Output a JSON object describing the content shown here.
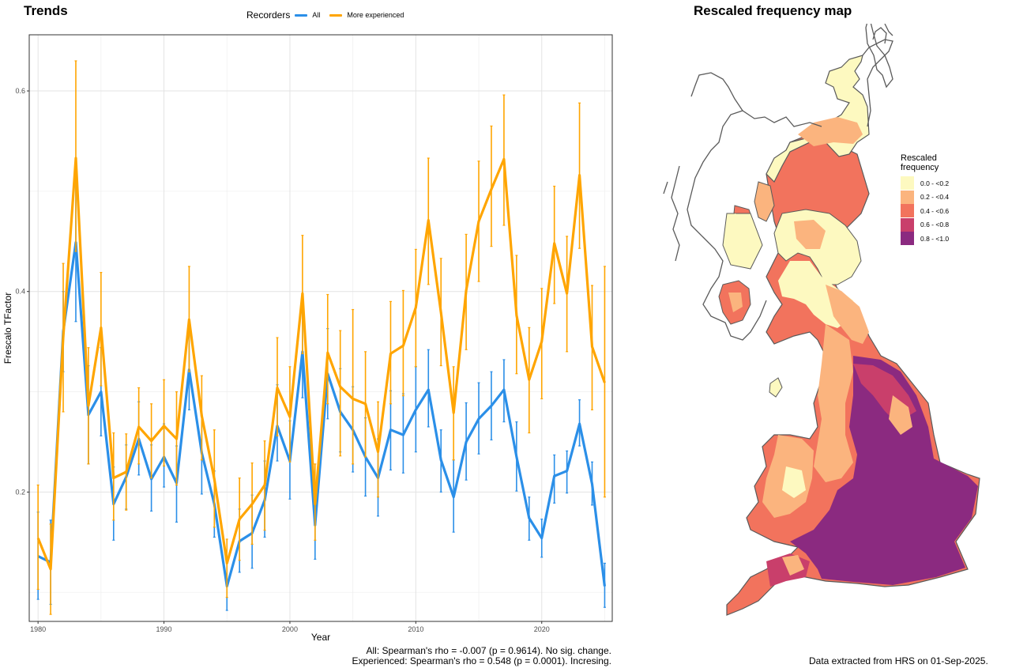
{
  "left_title": "Trends",
  "right_title": "Rescaled frequency map",
  "legend": {
    "title": "Recorders",
    "items": [
      {
        "label": "All",
        "color": "#2B8FE8"
      },
      {
        "label": "More experienced",
        "color": "#FFA500"
      }
    ]
  },
  "stats": {
    "line1": "All: Spearman's rho = -0.007 (p = 0.9614). No sig. change.",
    "line2": "Experienced: Spearman's rho = 0.548 (p = 0.0001). Incresing."
  },
  "credit": "Data extracted from HRS on 01-Sep-2025.",
  "chart_data": {
    "type": "line",
    "xlabel": "Year",
    "ylabel": "Frescalo TFactor",
    "xlim": [
      1979.3,
      2025.6
    ],
    "ylim": [
      0.071,
      0.656
    ],
    "x_ticks": [
      1980,
      1990,
      2000,
      2010,
      2020
    ],
    "y_ticks": [
      0.2,
      0.4,
      0.6
    ],
    "grid": true,
    "legend_position": "top",
    "x": [
      1980,
      1981,
      1982,
      1983,
      1984,
      1985,
      1986,
      1987,
      1988,
      1989,
      1990,
      1991,
      1992,
      1993,
      1994,
      1995,
      1996,
      1997,
      1998,
      1999,
      2000,
      2001,
      2002,
      2003,
      2004,
      2005,
      2006,
      2007,
      2008,
      2009,
      2010,
      2011,
      2012,
      2013,
      2014,
      2015,
      2016,
      2017,
      2018,
      2019,
      2020,
      2021,
      2022,
      2023,
      2024,
      2025
    ],
    "series": [
      {
        "name": "All",
        "color": "#2B8FE8",
        "values": [
          0.136,
          0.13,
          0.36,
          0.449,
          0.277,
          0.3,
          0.188,
          0.215,
          0.253,
          0.213,
          0.235,
          0.209,
          0.322,
          0.239,
          0.188,
          0.106,
          0.151,
          0.159,
          0.192,
          0.266,
          0.231,
          0.34,
          0.167,
          0.318,
          0.28,
          0.262,
          0.235,
          0.214,
          0.262,
          0.257,
          0.282,
          0.302,
          0.232,
          0.195,
          0.25,
          0.273,
          0.286,
          0.302,
          0.235,
          0.174,
          0.154,
          0.216,
          0.221,
          0.268,
          0.208,
          0.106
        ],
        "err_low": [
          0.093,
          0.088,
          0.32,
          0.37,
          0.228,
          0.256,
          0.152,
          0.183,
          0.217,
          0.181,
          0.205,
          0.17,
          0.282,
          0.198,
          0.155,
          0.082,
          0.12,
          0.124,
          0.155,
          0.231,
          0.193,
          0.294,
          0.133,
          0.273,
          0.24,
          0.22,
          0.196,
          0.176,
          0.222,
          0.219,
          0.24,
          0.265,
          0.2,
          0.16,
          0.212,
          0.238,
          0.252,
          0.27,
          0.201,
          0.152,
          0.135,
          0.189,
          0.199,
          0.246,
          0.187,
          0.085
        ],
        "err_high": [
          0.18,
          0.172,
          0.4,
          0.529,
          0.326,
          0.344,
          0.225,
          0.247,
          0.29,
          0.247,
          0.268,
          0.246,
          0.364,
          0.276,
          0.221,
          0.132,
          0.183,
          0.197,
          0.231,
          0.307,
          0.271,
          0.392,
          0.202,
          0.363,
          0.323,
          0.305,
          0.274,
          0.253,
          0.301,
          0.298,
          0.325,
          0.342,
          0.262,
          0.232,
          0.289,
          0.309,
          0.32,
          0.332,
          0.27,
          0.195,
          0.173,
          0.237,
          0.241,
          0.292,
          0.23,
          0.129
        ]
      },
      {
        "name": "More experienced",
        "color": "#FFA500",
        "values": [
          0.154,
          0.123,
          0.354,
          0.533,
          0.286,
          0.364,
          0.214,
          0.22,
          0.265,
          0.251,
          0.266,
          0.253,
          0.372,
          0.276,
          0.213,
          0.129,
          0.173,
          0.188,
          0.207,
          0.304,
          0.275,
          0.398,
          0.188,
          0.339,
          0.305,
          0.293,
          0.288,
          0.24,
          0.338,
          0.346,
          0.384,
          0.471,
          0.379,
          0.279,
          0.401,
          0.47,
          0.502,
          0.532,
          0.376,
          0.312,
          0.35,
          0.448,
          0.398,
          0.516,
          0.345,
          0.309
        ],
        "err_low": [
          0.103,
          0.078,
          0.28,
          0.44,
          0.228,
          0.306,
          0.172,
          0.182,
          0.228,
          0.214,
          0.226,
          0.207,
          0.32,
          0.232,
          0.165,
          0.095,
          0.132,
          0.148,
          0.162,
          0.256,
          0.23,
          0.338,
          0.152,
          0.288,
          0.236,
          0.228,
          0.235,
          0.195,
          0.288,
          0.296,
          0.325,
          0.407,
          0.326,
          0.232,
          0.342,
          0.41,
          0.445,
          0.466,
          0.318,
          0.259,
          0.293,
          0.388,
          0.34,
          0.443,
          0.282,
          0.195
        ],
        "err_high": [
          0.207,
          0.168,
          0.428,
          0.63,
          0.344,
          0.419,
          0.259,
          0.258,
          0.304,
          0.288,
          0.312,
          0.3,
          0.425,
          0.316,
          0.262,
          0.153,
          0.214,
          0.229,
          0.251,
          0.354,
          0.325,
          0.456,
          0.228,
          0.397,
          0.361,
          0.382,
          0.34,
          0.29,
          0.39,
          0.401,
          0.442,
          0.533,
          0.433,
          0.325,
          0.457,
          0.53,
          0.565,
          0.596,
          0.436,
          0.364,
          0.403,
          0.505,
          0.455,
          0.588,
          0.406,
          0.425
        ]
      }
    ]
  },
  "map": {
    "legend_title_line1": "Rescaled",
    "legend_title_line2": "frequency",
    "outline_color": "#5a5a5a",
    "classes": [
      {
        "label": "0.0 - <0.2",
        "color": "#FDF9C0"
      },
      {
        "label": "0.2 - <0.4",
        "color": "#FBB47E"
      },
      {
        "label": "0.4 - <0.6",
        "color": "#F2735D"
      },
      {
        "label": "0.6 - <0.8",
        "color": "#C93F6B"
      },
      {
        "label": "0.8 - <1.0",
        "color": "#8B2A80"
      }
    ]
  }
}
